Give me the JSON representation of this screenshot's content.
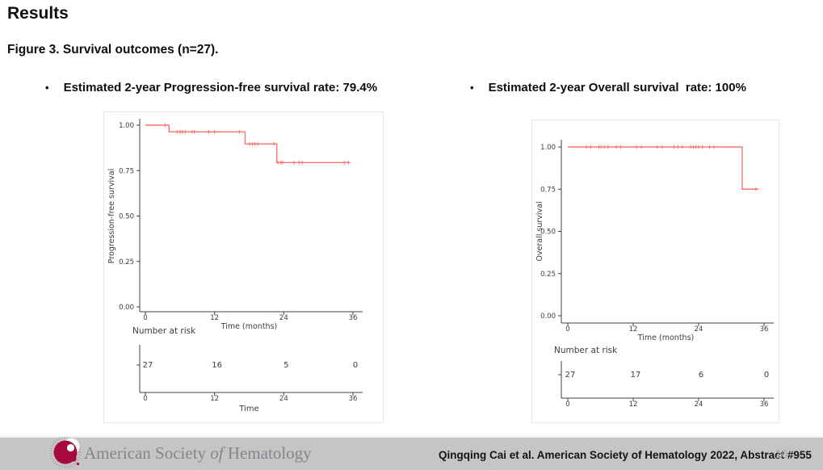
{
  "slide": {
    "title": "Results",
    "figure_caption": "Figure 3. Survival outcomes (n=27).",
    "bullet_char": "•",
    "bullets": [
      "Estimated 2-year Progression-free survival rate: 79.4%",
      "Estimated 2-year Overall survival  rate: 100%"
    ]
  },
  "footer": {
    "logo_pre": "American Society ",
    "logo_of": "of",
    "logo_post": " Hematology",
    "citation": "Qingqing Cai et al. American Society of Hematology 2022, Abstract #955",
    "page_number": "10",
    "brand_red": "#A6093D",
    "band_gray": "#c5c5c5"
  },
  "chart_data": [
    {
      "type": "line",
      "subtype": "kaplan-meier-step",
      "title": "",
      "ylabel": "Progression-free survival",
      "xlabel": "Time (months)",
      "xlim": [
        0,
        36
      ],
      "ylim": [
        0,
        1
      ],
      "x_ticks": [
        0,
        12,
        24,
        36
      ],
      "y_ticks": [
        "0.00",
        "0.25",
        "0.50",
        "0.75",
        "1.00"
      ],
      "grid": "off",
      "legend": "none",
      "color": "#F8766D",
      "steps": [
        [
          0,
          1.0
        ],
        [
          4.1,
          0.963
        ],
        [
          17.3,
          0.897
        ],
        [
          22.8,
          0.794
        ]
      ],
      "end_time": 35.5,
      "censor_marks": [
        [
          3.4,
          1.0
        ],
        [
          5.5,
          0.963
        ],
        [
          6.0,
          0.963
        ],
        [
          6.4,
          0.963
        ],
        [
          6.9,
          0.963
        ],
        [
          8.1,
          0.963
        ],
        [
          8.5,
          0.963
        ],
        [
          11.0,
          0.963
        ],
        [
          12.0,
          0.963
        ],
        [
          16.3,
          0.963
        ],
        [
          18.1,
          0.897
        ],
        [
          18.6,
          0.897
        ],
        [
          19.0,
          0.897
        ],
        [
          19.5,
          0.897
        ],
        [
          22.3,
          0.897
        ],
        [
          23.0,
          0.794
        ],
        [
          23.5,
          0.794
        ],
        [
          23.8,
          0.794
        ],
        [
          25.8,
          0.794
        ],
        [
          26.7,
          0.794
        ],
        [
          27.2,
          0.794
        ],
        [
          34.5,
          0.794
        ],
        [
          35.2,
          0.794
        ]
      ],
      "risk_label": "Number at risk",
      "risk_times": [
        0,
        12,
        24,
        36
      ],
      "risk_counts": [
        "27",
        "16",
        "5",
        "0"
      ],
      "risk_xlabel": "Time"
    },
    {
      "type": "line",
      "subtype": "kaplan-meier-step",
      "title": "",
      "ylabel": "Overall survival",
      "xlabel": "Time (months)",
      "xlim": [
        0,
        36
      ],
      "ylim": [
        0,
        1
      ],
      "x_ticks": [
        0,
        12,
        24,
        36
      ],
      "y_ticks": [
        "0.00",
        "0.25",
        "0.50",
        "0.75",
        "1.00"
      ],
      "grid": "off",
      "legend": "none",
      "color": "#F8766D",
      "steps": [
        [
          0,
          1.0
        ],
        [
          32.0,
          0.75
        ]
      ],
      "end_time": 35.0,
      "censor_marks": [
        [
          3.4,
          1.0
        ],
        [
          4.2,
          1.0
        ],
        [
          5.7,
          1.0
        ],
        [
          6.1,
          1.0
        ],
        [
          6.7,
          1.0
        ],
        [
          7.4,
          1.0
        ],
        [
          8.9,
          1.0
        ],
        [
          9.7,
          1.0
        ],
        [
          12.6,
          1.0
        ],
        [
          13.5,
          1.0
        ],
        [
          16.4,
          1.0
        ],
        [
          17.3,
          1.0
        ],
        [
          19.5,
          1.0
        ],
        [
          20.2,
          1.0
        ],
        [
          21.0,
          1.0
        ],
        [
          22.5,
          1.0
        ],
        [
          23.0,
          1.0
        ],
        [
          23.5,
          1.0
        ],
        [
          24.0,
          1.0
        ],
        [
          24.7,
          1.0
        ],
        [
          26.0,
          1.0
        ],
        [
          26.8,
          1.0
        ],
        [
          34.5,
          0.75
        ]
      ],
      "risk_label": "Number at risk",
      "risk_times": [
        0,
        12,
        24,
        36
      ],
      "risk_counts": [
        "27",
        "17",
        "6",
        "0"
      ],
      "risk_xlabel": ""
    }
  ]
}
